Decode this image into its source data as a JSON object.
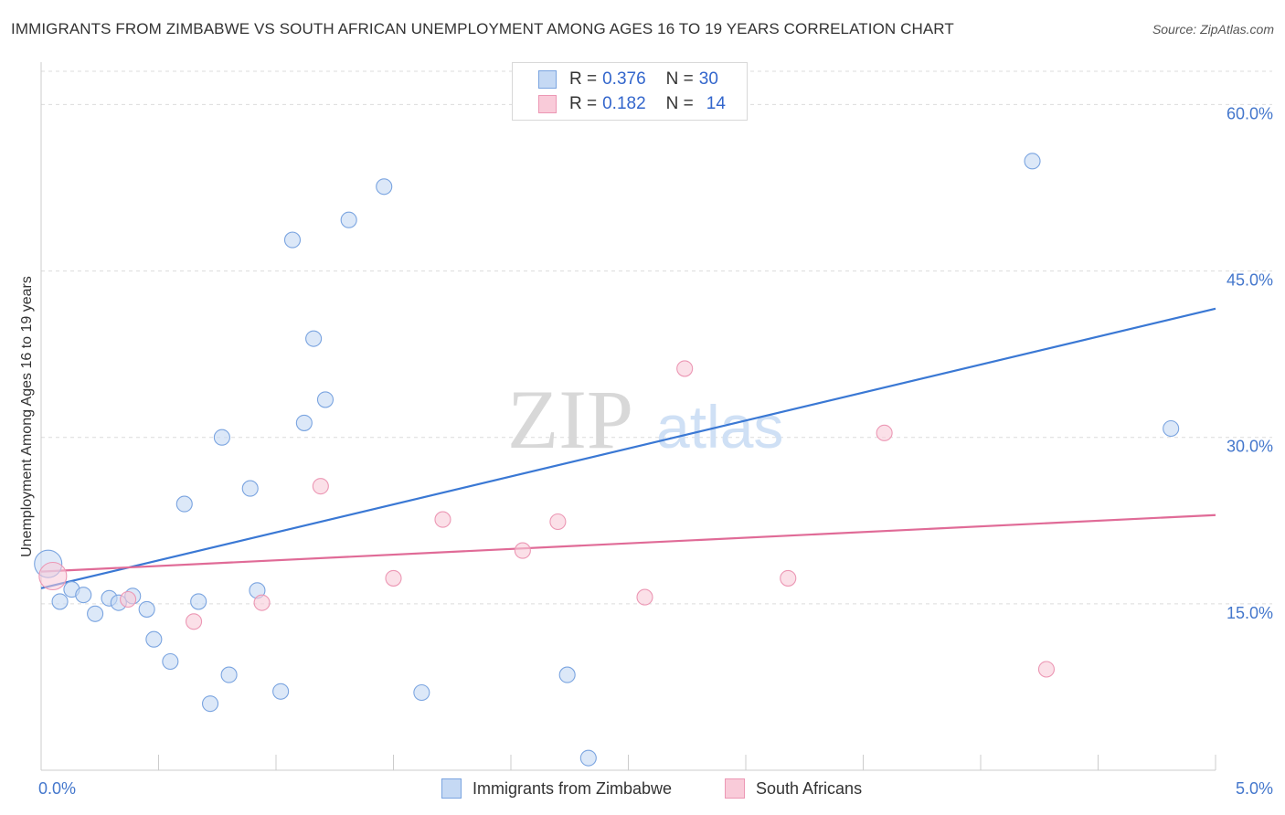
{
  "title": "IMMIGRANTS FROM ZIMBABWE VS SOUTH AFRICAN UNEMPLOYMENT AMONG AGES 16 TO 19 YEARS CORRELATION CHART",
  "source": "Source: ZipAtlas.com",
  "watermark": {
    "zip": "ZIP",
    "atlas": "atlas"
  },
  "legend": {
    "r_label": "R =",
    "n_label": "N =",
    "series": [
      {
        "r": "0.376",
        "n": "30"
      },
      {
        "r": "0.182",
        "n": "14"
      }
    ]
  },
  "colors": {
    "blue_fill": "#c5d9f4",
    "blue_stroke": "#7aa4e0",
    "blue_line": "#3a78d4",
    "pink_fill": "#f9cbd9",
    "pink_stroke": "#ec97b4",
    "pink_line": "#e06b97",
    "grid": "#dcdcdc",
    "tick_label": "#4477cc"
  },
  "chart_data": {
    "type": "scatter",
    "title": "IMMIGRANTS FROM ZIMBABWE VS SOUTH AFRICAN UNEMPLOYMENT AMONG AGES 16 TO 19 YEARS CORRELATION CHART",
    "xlabel": "",
    "ylabel": "Unemployment Among Ages 16 to 19 years",
    "xlim": [
      0,
      5
    ],
    "ylim": [
      0,
      63
    ],
    "x_tick_labels": [
      "0.0%",
      "5.0%"
    ],
    "y_ticks": [
      15,
      30,
      45,
      60
    ],
    "y_tick_labels": [
      "15.0%",
      "30.0%",
      "45.0%",
      "60.0%"
    ],
    "grid": true,
    "legend_position": "top-center",
    "series": [
      {
        "name": "Immigrants from Zimbabwe",
        "color": "blue",
        "trendline": {
          "x": [
            0,
            5
          ],
          "y": [
            16.4,
            41.6
          ]
        },
        "points": [
          {
            "x": 0.03,
            "y": 18.6,
            "big": true
          },
          {
            "x": 0.08,
            "y": 15.2
          },
          {
            "x": 0.13,
            "y": 16.3
          },
          {
            "x": 0.18,
            "y": 15.8
          },
          {
            "x": 0.23,
            "y": 14.1
          },
          {
            "x": 0.29,
            "y": 15.5
          },
          {
            "x": 0.33,
            "y": 15.1
          },
          {
            "x": 0.39,
            "y": 15.7
          },
          {
            "x": 0.45,
            "y": 14.5
          },
          {
            "x": 0.48,
            "y": 11.8
          },
          {
            "x": 0.55,
            "y": 9.8
          },
          {
            "x": 0.61,
            "y": 24.0
          },
          {
            "x": 0.67,
            "y": 15.2
          },
          {
            "x": 0.72,
            "y": 6.0
          },
          {
            "x": 0.77,
            "y": 30.0
          },
          {
            "x": 0.8,
            "y": 8.6
          },
          {
            "x": 0.89,
            "y": 25.4
          },
          {
            "x": 0.92,
            "y": 16.2
          },
          {
            "x": 1.02,
            "y": 7.1
          },
          {
            "x": 1.07,
            "y": 47.8
          },
          {
            "x": 1.12,
            "y": 31.3
          },
          {
            "x": 1.16,
            "y": 38.9
          },
          {
            "x": 1.21,
            "y": 33.4
          },
          {
            "x": 1.31,
            "y": 49.6
          },
          {
            "x": 1.46,
            "y": 52.6
          },
          {
            "x": 1.62,
            "y": 7.0
          },
          {
            "x": 2.24,
            "y": 8.6
          },
          {
            "x": 2.33,
            "y": 1.1
          },
          {
            "x": 4.22,
            "y": 54.9
          },
          {
            "x": 4.81,
            "y": 30.8
          }
        ]
      },
      {
        "name": "South Africans",
        "color": "pink",
        "trendline": {
          "x": [
            0,
            5
          ],
          "y": [
            17.9,
            23.0
          ]
        },
        "points": [
          {
            "x": 0.05,
            "y": 17.5,
            "big": true
          },
          {
            "x": 0.37,
            "y": 15.4
          },
          {
            "x": 0.65,
            "y": 13.4
          },
          {
            "x": 0.94,
            "y": 15.1
          },
          {
            "x": 1.19,
            "y": 25.6
          },
          {
            "x": 1.5,
            "y": 17.3
          },
          {
            "x": 1.71,
            "y": 22.6
          },
          {
            "x": 2.05,
            "y": 19.8
          },
          {
            "x": 2.2,
            "y": 22.4
          },
          {
            "x": 2.57,
            "y": 15.6
          },
          {
            "x": 2.74,
            "y": 36.2
          },
          {
            "x": 3.18,
            "y": 17.3
          },
          {
            "x": 3.59,
            "y": 30.4
          },
          {
            "x": 4.28,
            "y": 9.1
          }
        ]
      }
    ]
  }
}
